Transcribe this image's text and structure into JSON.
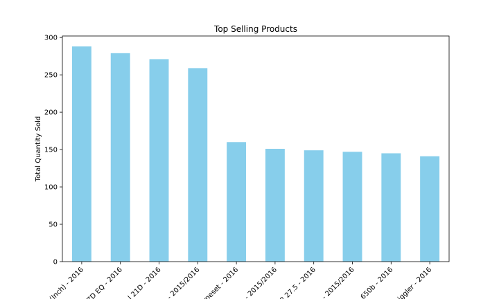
{
  "chart_data": {
    "type": "bar",
    "title": "Top Selling Products",
    "xlabel": "",
    "ylabel": "Total Quantity Sold",
    "categories": [
      "(Inch) - 2016",
      "ZD EQ - 2016",
      "l 21D - 2016",
      "- 2015/2016",
      "meset - 2016",
      "- 2015/2016",
      "2 27.5 - 2016",
      "- 2015/2016",
      "650b - 2016",
      "iggler - 2016"
    ],
    "values": [
      288,
      279,
      271,
      259,
      160,
      151,
      149,
      147,
      145,
      141
    ],
    "ylim": [
      0,
      302
    ],
    "yticks": [
      0,
      50,
      100,
      150,
      200,
      250,
      300
    ],
    "bar_color": "#87ceeb",
    "grid": false,
    "legend": "none"
  }
}
